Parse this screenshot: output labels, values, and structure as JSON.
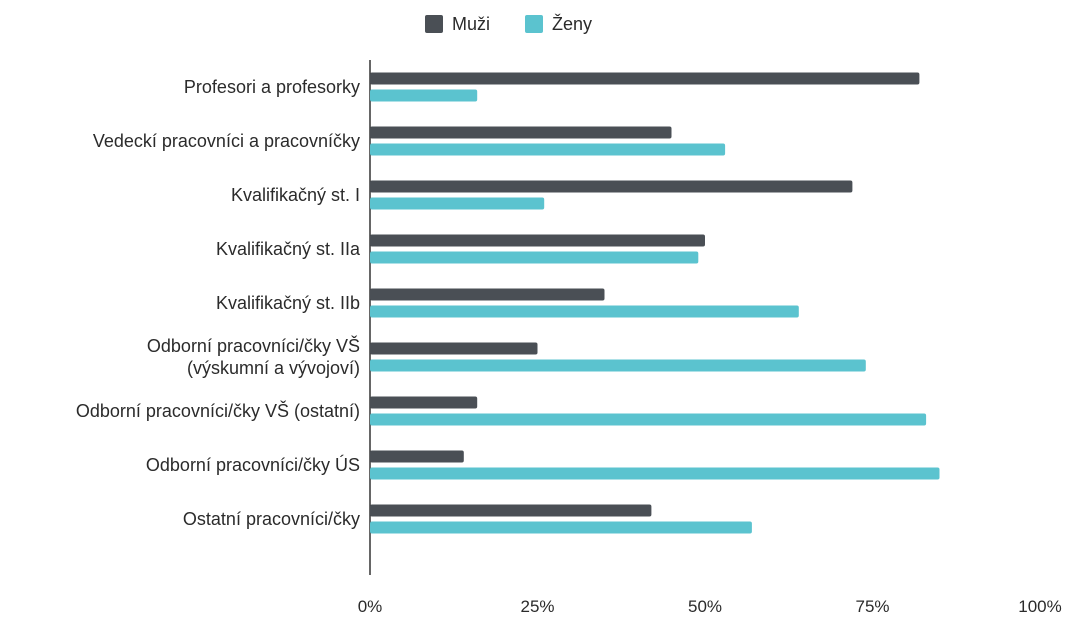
{
  "chart_data": {
    "type": "bar",
    "orientation": "horizontal",
    "categories": [
      [
        "Profesori a profesorky"
      ],
      [
        "Vedeckí pracovníci a pracovníčky"
      ],
      [
        "Kvalifikačný st. I"
      ],
      [
        "Kvalifikačný st. IIa"
      ],
      [
        "Kvalifikačný st. IIb"
      ],
      [
        "Odborní pracovníci/čky VŠ",
        "(výskumní a vývojoví)"
      ],
      [
        "Odborní pracovníci/čky VŠ (ostatní)"
      ],
      [
        "Odborní pracovníci/čky ÚS"
      ],
      [
        "Ostatní pracovníci/čky"
      ]
    ],
    "series": [
      {
        "name": "Muži",
        "color": "#4a4f55",
        "values": [
          82,
          45,
          72,
          50,
          35,
          25,
          16,
          14,
          42
        ]
      },
      {
        "name": "Ženy",
        "color": "#5bc3cf",
        "values": [
          16,
          53,
          26,
          49,
          64,
          74,
          83,
          85,
          57
        ]
      }
    ],
    "xlim": [
      0,
      100
    ],
    "xticks": [
      "0%",
      "25%",
      "50%",
      "75%",
      "100%"
    ],
    "legend_position": "top-center",
    "grid": false
  }
}
